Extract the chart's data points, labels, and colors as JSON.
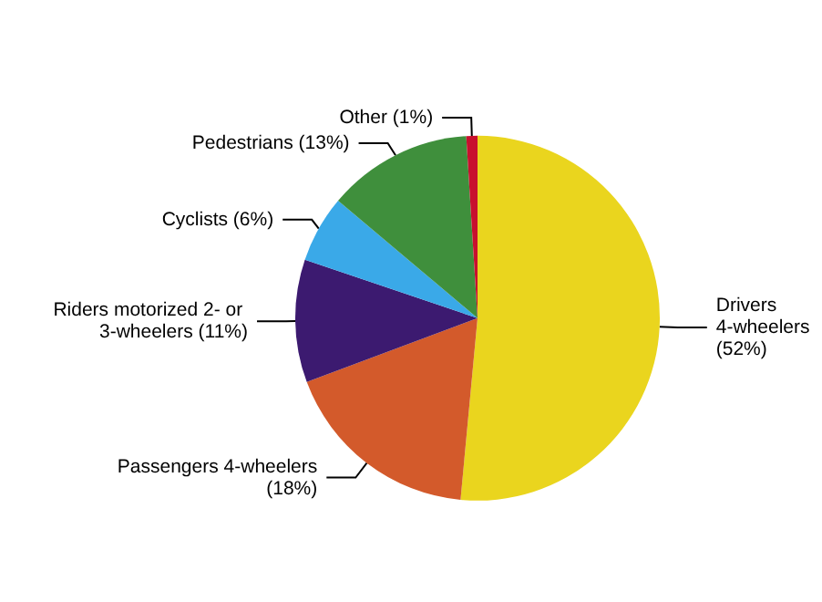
{
  "chart_data": {
    "type": "pie",
    "categories": [
      "Drivers 4-wheelers",
      "Passengers 4-wheelers",
      "Riders motorized 2- or 3-wheelers",
      "Cyclists",
      "Pedestrians",
      "Other"
    ],
    "values": [
      52,
      18,
      11,
      6,
      13,
      1
    ],
    "value_labels": [
      "(52%)",
      "(18%)",
      "(11%)",
      "(6%)",
      "(13%)",
      "(1%)"
    ],
    "colors": [
      "#ead51e",
      "#d35a2b",
      "#3c1a70",
      "#3aa9e8",
      "#3f8f3c",
      "#c8102e"
    ],
    "legend": false
  }
}
